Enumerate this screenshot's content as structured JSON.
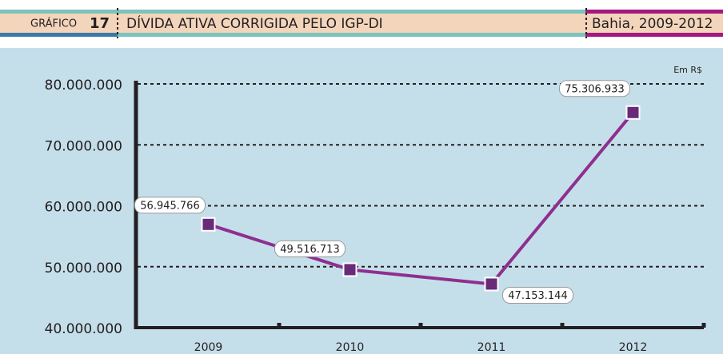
{
  "chart_data": {
    "type": "line",
    "figure_label": "GRÁFICO",
    "figure_number": "17",
    "title": "DÍVIDA ATIVA CORRIGIDA PELO IGP-DI",
    "subtitle": "Bahia, 2009-2012",
    "unit": "Em R$",
    "categories": [
      "2009",
      "2010",
      "2011",
      "2012"
    ],
    "series": [
      {
        "name": "Dívida ativa",
        "color": "#6a2a7a",
        "values": [
          56945766,
          49516713,
          47153144,
          75306933
        ],
        "value_labels": [
          "56.945.766",
          "49.516.713",
          "47.153.144",
          "75.306.933"
        ]
      }
    ],
    "ylim": [
      40000000,
      80000000
    ],
    "yticks": [
      {
        "value": 40000000,
        "label": "40.000.000"
      },
      {
        "value": 50000000,
        "label": "50.000.000"
      },
      {
        "value": 60000000,
        "label": "60.000.000"
      },
      {
        "value": 70000000,
        "label": "70.000.000"
      },
      {
        "value": 80000000,
        "label": "80.000.000"
      }
    ],
    "grid": true
  }
}
